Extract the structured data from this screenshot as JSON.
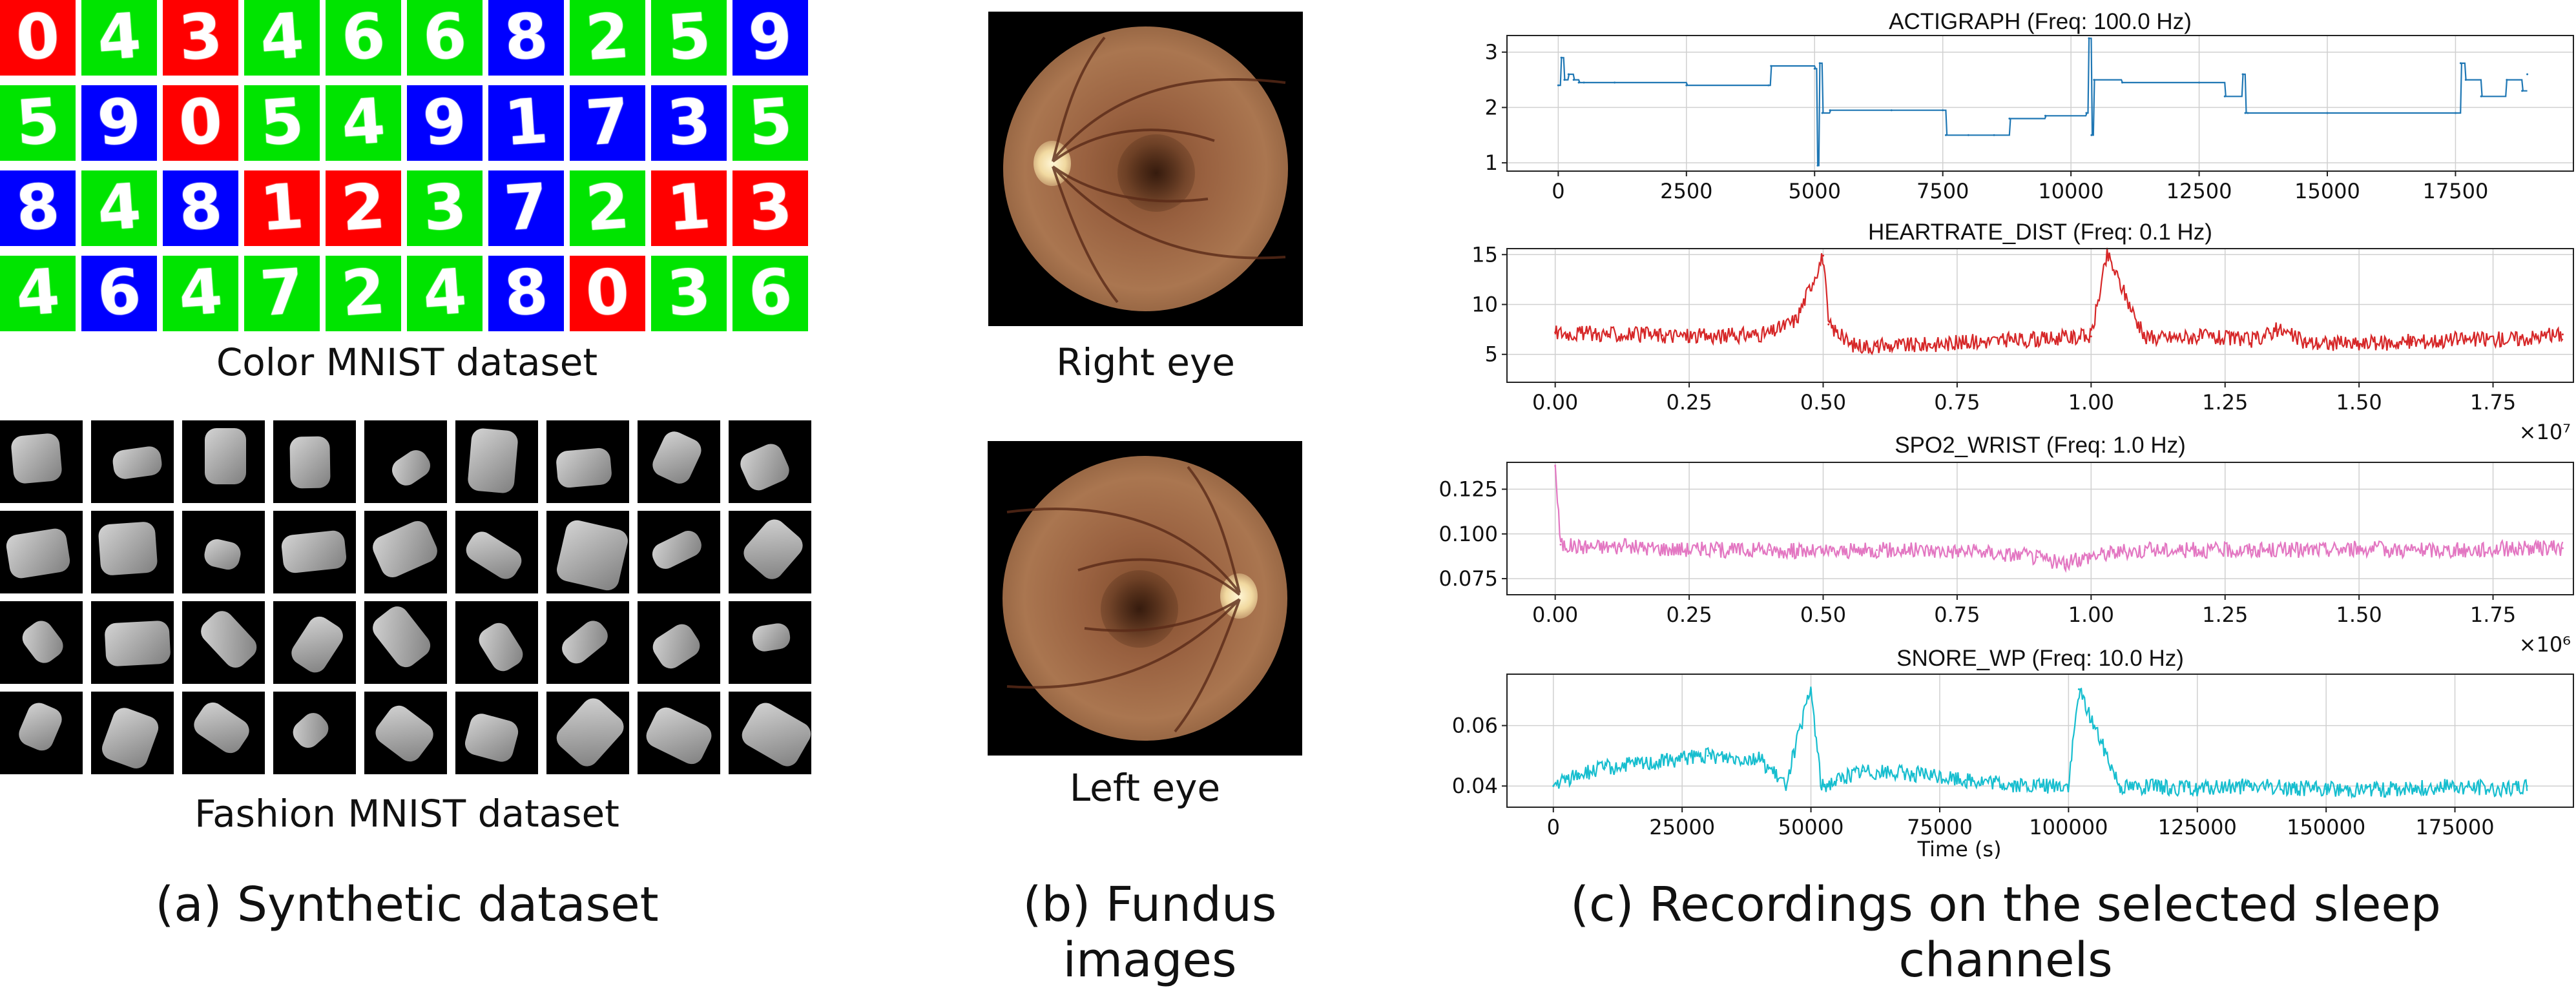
{
  "panel_a": {
    "mnist_caption": "Color MNIST dataset",
    "fashion_caption": "Fashion MNIST dataset",
    "label": "(a) Synthetic dataset",
    "tile_colors": {
      "red": "#ff0000",
      "green": "#00e400",
      "blue": "#0000ff"
    },
    "mnist_rows": [
      [
        {
          "d": "0",
          "c": "red"
        },
        {
          "d": "4",
          "c": "green"
        },
        {
          "d": "3",
          "c": "red"
        },
        {
          "d": "4",
          "c": "green"
        },
        {
          "d": "6",
          "c": "green"
        },
        {
          "d": "6",
          "c": "green"
        },
        {
          "d": "8",
          "c": "blue"
        },
        {
          "d": "2",
          "c": "green"
        },
        {
          "d": "5",
          "c": "green"
        },
        {
          "d": "9",
          "c": "blue"
        }
      ],
      [
        {
          "d": "5",
          "c": "green"
        },
        {
          "d": "9",
          "c": "blue"
        },
        {
          "d": "0",
          "c": "red"
        },
        {
          "d": "5",
          "c": "green"
        },
        {
          "d": "4",
          "c": "green"
        },
        {
          "d": "9",
          "c": "blue"
        },
        {
          "d": "1",
          "c": "blue"
        },
        {
          "d": "7",
          "c": "blue"
        },
        {
          "d": "3",
          "c": "blue"
        },
        {
          "d": "5",
          "c": "green"
        }
      ],
      [
        {
          "d": "8",
          "c": "blue"
        },
        {
          "d": "4",
          "c": "green"
        },
        {
          "d": "8",
          "c": "blue"
        },
        {
          "d": "1",
          "c": "red"
        },
        {
          "d": "2",
          "c": "red"
        },
        {
          "d": "3",
          "c": "green"
        },
        {
          "d": "7",
          "c": "blue"
        },
        {
          "d": "2",
          "c": "green"
        },
        {
          "d": "1",
          "c": "red"
        },
        {
          "d": "3",
          "c": "red"
        }
      ],
      [
        {
          "d": "4",
          "c": "green"
        },
        {
          "d": "6",
          "c": "blue"
        },
        {
          "d": "4",
          "c": "green"
        },
        {
          "d": "7",
          "c": "green"
        },
        {
          "d": "2",
          "c": "green"
        },
        {
          "d": "4",
          "c": "green"
        },
        {
          "d": "8",
          "c": "blue"
        },
        {
          "d": "0",
          "c": "red"
        },
        {
          "d": "3",
          "c": "green"
        },
        {
          "d": "6",
          "c": "green"
        }
      ]
    ]
  },
  "panel_b": {
    "right_eye_caption": "Right eye",
    "left_eye_caption": "Left eye",
    "label": "(b) Fundus images"
  },
  "panel_c": {
    "label": "(c) Recordings on the selected sleep channels"
  },
  "chart_data": [
    {
      "type": "line",
      "title": "ACTIGRAPH (Freq: 100.0 Hz)",
      "color": "#1f77b4",
      "xlim": [
        -1000,
        19800
      ],
      "ylim": [
        0.85,
        3.3
      ],
      "xticks": [
        0,
        2500,
        5000,
        7500,
        10000,
        12500,
        15000,
        17500
      ],
      "xtick_labels": [
        "0",
        "2500",
        "5000",
        "7500",
        "10000",
        "12500",
        "15000",
        "17500"
      ],
      "yticks": [
        1,
        2,
        3
      ],
      "ytick_labels": [
        "1",
        "2",
        "3"
      ],
      "x_offset_label": "",
      "x": [
        0,
        60,
        120,
        200,
        300,
        400,
        500,
        1100,
        2500,
        4100,
        4150,
        5000,
        5060,
        5100,
        5150,
        5300,
        6500,
        7500,
        7560,
        8000,
        8500,
        8800,
        9500,
        10300,
        10350,
        10400,
        10450,
        11000,
        12500,
        13000,
        13350,
        13400,
        13450,
        15000,
        17500,
        17600,
        17700,
        18000,
        18500,
        18800,
        18900
      ],
      "y": [
        2.4,
        2.9,
        2.5,
        2.6,
        2.5,
        2.45,
        2.45,
        2.45,
        2.4,
        2.4,
        2.75,
        2.7,
        0.95,
        2.8,
        1.9,
        1.95,
        1.95,
        1.95,
        1.5,
        1.5,
        1.5,
        1.8,
        1.85,
        1.9,
        3.25,
        1.5,
        2.5,
        2.45,
        2.45,
        2.2,
        2.6,
        1.9,
        1.9,
        1.9,
        1.9,
        2.8,
        2.5,
        2.2,
        2.5,
        2.3,
        2.6
      ]
    },
    {
      "type": "line",
      "title": "HEARTRATE_DIST (Freq: 0.1 Hz)",
      "color": "#d62728",
      "xlim": [
        -0.09,
        1.9
      ],
      "ylim": [
        2.2,
        15.6
      ],
      "xticks": [
        0.0,
        0.25,
        0.5,
        0.75,
        1.0,
        1.25,
        1.5,
        1.75
      ],
      "xtick_labels": [
        "0.00",
        "0.25",
        "0.50",
        "0.75",
        "1.00",
        "1.25",
        "1.50",
        "1.75"
      ],
      "yticks": [
        5,
        10,
        15
      ],
      "ytick_labels": [
        "5",
        "10",
        "15"
      ],
      "x_offset_label": "×10⁷",
      "x": [
        0.0,
        0.1,
        0.2,
        0.3,
        0.4,
        0.45,
        0.5,
        0.51,
        0.55,
        0.6,
        0.7,
        0.8,
        0.9,
        1.0,
        1.03,
        1.1,
        1.2,
        1.3,
        1.35,
        1.4,
        1.5,
        1.6,
        1.7,
        1.8,
        1.88
      ],
      "y": [
        7.2,
        7.0,
        6.9,
        6.8,
        7.1,
        8.5,
        14.9,
        8.0,
        6.0,
        5.8,
        6.0,
        6.3,
        6.5,
        6.8,
        15.0,
        6.6,
        6.8,
        6.4,
        7.5,
        6.2,
        6.0,
        6.3,
        6.5,
        6.6,
        7.0
      ]
    },
    {
      "type": "line",
      "title": "SPO2_WRIST (Freq: 1.0 Hz)",
      "color": "#e377c2",
      "xlim": [
        -0.09,
        1.9
      ],
      "ylim": [
        0.066,
        0.14
      ],
      "xticks": [
        0.0,
        0.25,
        0.5,
        0.75,
        1.0,
        1.25,
        1.5,
        1.75
      ],
      "xtick_labels": [
        "0.00",
        "0.25",
        "0.50",
        "0.75",
        "1.00",
        "1.25",
        "1.50",
        "1.75"
      ],
      "yticks": [
        0.075,
        0.1,
        0.125
      ],
      "ytick_labels": [
        "0.075",
        "0.100",
        "0.125"
      ],
      "x_offset_label": "×10⁶",
      "x": [
        0.0,
        0.01,
        0.05,
        0.12,
        0.2,
        0.3,
        0.4,
        0.5,
        0.6,
        0.7,
        0.8,
        0.9,
        0.95,
        1.0,
        1.05,
        1.1,
        1.2,
        1.3,
        1.4,
        1.5,
        1.6,
        1.7,
        1.8,
        1.88
      ],
      "y": [
        0.138,
        0.094,
        0.093,
        0.093,
        0.092,
        0.091,
        0.091,
        0.09,
        0.091,
        0.091,
        0.09,
        0.087,
        0.083,
        0.088,
        0.09,
        0.091,
        0.091,
        0.091,
        0.091,
        0.092,
        0.091,
        0.091,
        0.092,
        0.092
      ]
    },
    {
      "type": "line",
      "title": "SNORE_WP (Freq: 10.0 Hz)",
      "color": "#17becf",
      "xlim": [
        -9000,
        198000
      ],
      "ylim": [
        0.033,
        0.077
      ],
      "xticks": [
        0,
        25000,
        50000,
        75000,
        100000,
        125000,
        150000,
        175000
      ],
      "xtick_labels": [
        "0",
        "25000",
        "50000",
        "75000",
        "100000",
        "125000",
        "150000",
        "175000"
      ],
      "yticks": [
        0.04,
        0.06
      ],
      "ytick_labels": [
        "0.04",
        "0.06"
      ],
      "xlabel": "Time (s)",
      "x_offset_label": "",
      "x": [
        0,
        5000,
        10000,
        20000,
        30000,
        40000,
        45000,
        50000,
        52000,
        55000,
        60000,
        70000,
        80000,
        90000,
        100000,
        102000,
        110000,
        125000,
        135000,
        150000,
        165000,
        175000,
        185000,
        189000
      ],
      "y": [
        0.04,
        0.044,
        0.046,
        0.048,
        0.05,
        0.049,
        0.04,
        0.072,
        0.04,
        0.042,
        0.045,
        0.044,
        0.042,
        0.04,
        0.04,
        0.072,
        0.04,
        0.039,
        0.04,
        0.039,
        0.039,
        0.04,
        0.039,
        0.04
      ]
    }
  ]
}
